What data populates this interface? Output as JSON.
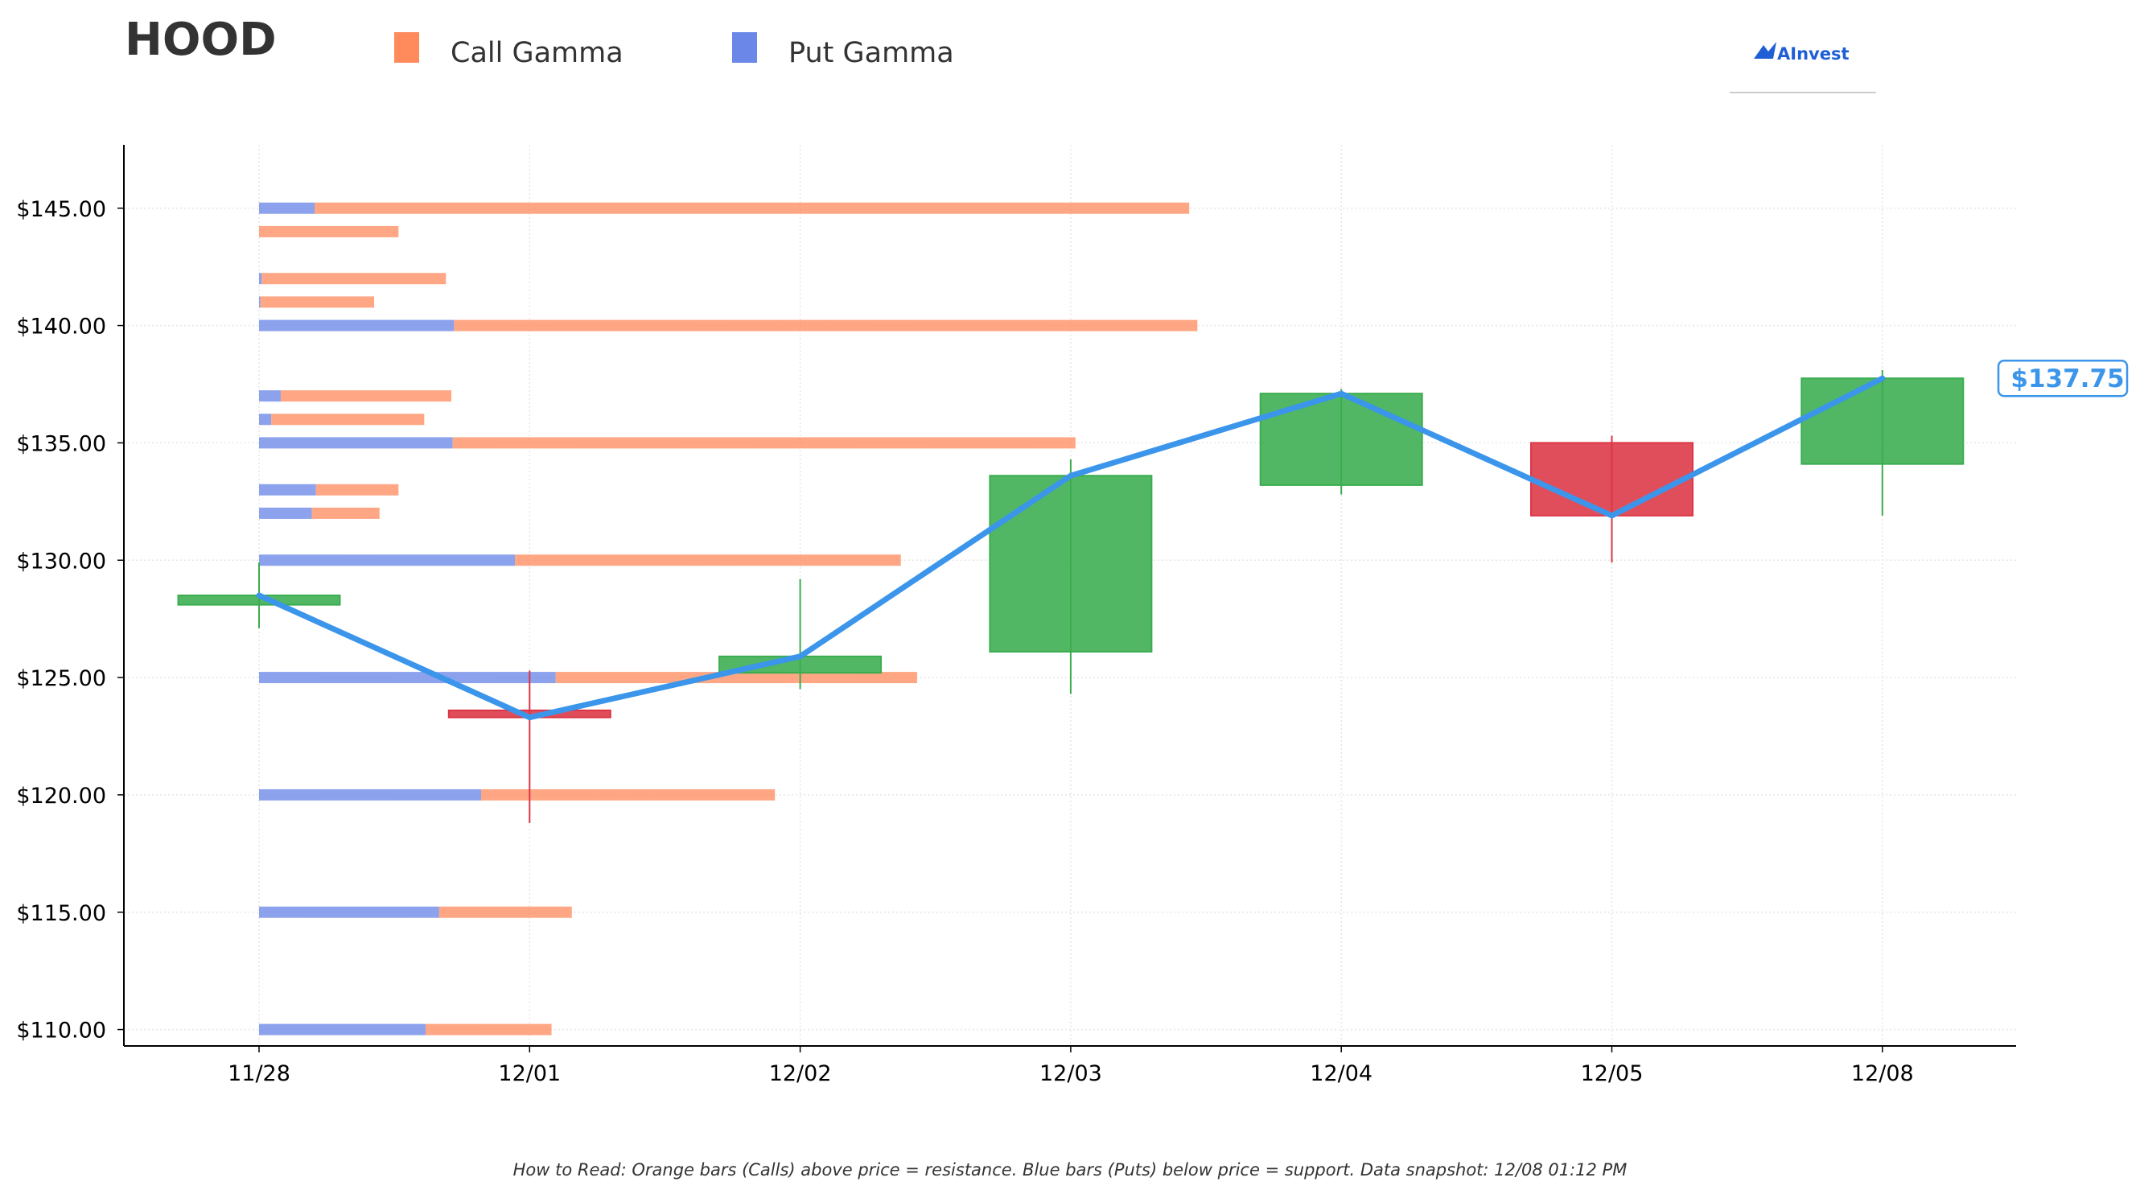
{
  "chart_data": {
    "type": "candlestick",
    "ticker": "HOOD",
    "legend": [
      {
        "label": "Call Gamma",
        "color": "#ff8a5c"
      },
      {
        "label": "Put Gamma",
        "color": "#6b88e8"
      }
    ],
    "brand": "AInvest",
    "categories": [
      "11/28",
      "12/01",
      "12/02",
      "12/03",
      "12/04",
      "12/05",
      "12/08"
    ],
    "candles": [
      {
        "date": "11/28",
        "open": 128.1,
        "high": 129.9,
        "low": 127.1,
        "close": 128.5
      },
      {
        "date": "12/01",
        "open": 123.6,
        "high": 125.3,
        "low": 118.8,
        "close": 123.3
      },
      {
        "date": "12/02",
        "open": 125.2,
        "high": 129.2,
        "low": 124.5,
        "close": 125.9
      },
      {
        "date": "12/03",
        "open": 126.1,
        "high": 134.3,
        "low": 124.3,
        "close": 133.6
      },
      {
        "date": "12/04",
        "open": 133.2,
        "high": 137.3,
        "low": 132.8,
        "close": 137.1
      },
      {
        "date": "12/05",
        "open": 135.0,
        "high": 135.3,
        "low": 129.9,
        "close": 131.9
      },
      {
        "date": "12/08",
        "open": 134.1,
        "high": 138.1,
        "low": 131.9,
        "close": 137.75
      }
    ],
    "close_line": [
      128.5,
      123.3,
      125.9,
      133.6,
      137.1,
      131.9,
      137.75
    ],
    "gamma_bars": [
      {
        "strike": 145,
        "put": 0.41,
        "call": 6.46
      },
      {
        "strike": 144,
        "put": 0,
        "call": 1.03
      },
      {
        "strike": 142,
        "put": 0.02,
        "call": 1.36
      },
      {
        "strike": 141,
        "put": 0.01,
        "call": 0.84
      },
      {
        "strike": 140,
        "put": 1.44,
        "call": 5.49
      },
      {
        "strike": 137,
        "put": 0.16,
        "call": 1.26
      },
      {
        "strike": 136,
        "put": 0.09,
        "call": 1.13
      },
      {
        "strike": 135,
        "put": 1.43,
        "call": 4.6
      },
      {
        "strike": 133,
        "put": 0.42,
        "call": 0.61
      },
      {
        "strike": 132,
        "put": 0.39,
        "call": 0.5
      },
      {
        "strike": 130,
        "put": 1.89,
        "call": 2.85
      },
      {
        "strike": 125,
        "put": 2.19,
        "call": 2.67
      },
      {
        "strike": 120,
        "put": 1.64,
        "call": 2.17
      },
      {
        "strike": 115,
        "put": 1.33,
        "call": 0.98
      },
      {
        "strike": 110,
        "put": 1.23,
        "call": 0.93
      }
    ],
    "y_ticks": [
      {
        "value": 145,
        "label": "$145.00"
      },
      {
        "value": 140,
        "label": "$140.00"
      },
      {
        "value": 135,
        "label": "$135.00"
      },
      {
        "value": 130,
        "label": "$130.00"
      },
      {
        "value": 125,
        "label": "$125.00"
      },
      {
        "value": 120,
        "label": "$120.00"
      },
      {
        "value": 115,
        "label": "$115.00"
      },
      {
        "value": 110,
        "label": "$110.00"
      }
    ],
    "ylim": [
      109.3,
      147.7
    ],
    "grid": true,
    "last_price_label": "$137.75",
    "last_price": 137.75,
    "footnote": "How to Read: Orange bars (Calls) above price = resistance. Blue bars (Puts) below price = support. Data snapshot: 12/08 01:12 PM",
    "colors": {
      "up": "#3aad4f",
      "down": "#dc3545",
      "call": "#ff8a5c",
      "put": "#6b88e8",
      "line": "#3b95ea",
      "grid": "#e6e6e6"
    }
  }
}
